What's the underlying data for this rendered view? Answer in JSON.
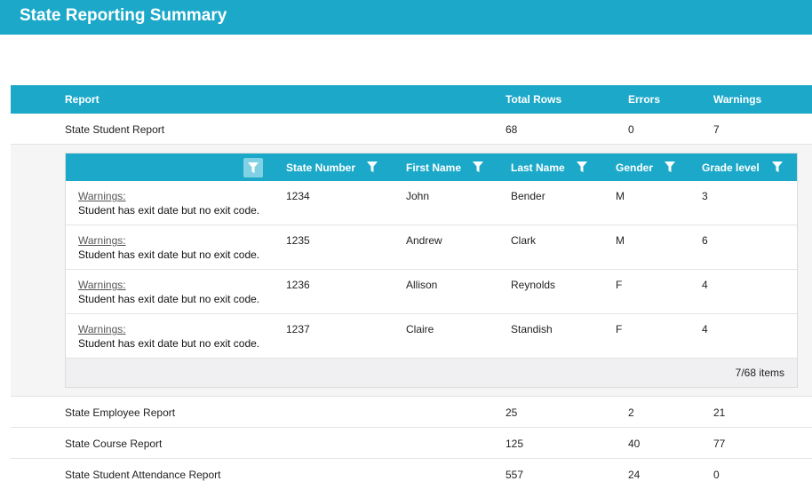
{
  "page": {
    "title": "State Reporting Summary"
  },
  "main_table": {
    "headers": {
      "report": "Report",
      "total_rows": "Total Rows",
      "errors": "Errors",
      "warnings": "Warnings"
    },
    "rows": [
      {
        "report": "State Student Report",
        "total_rows": "68",
        "errors": "0",
        "warnings": "7"
      },
      {
        "report": "State Employee Report",
        "total_rows": "25",
        "errors": "2",
        "warnings": "21"
      },
      {
        "report": "State Course Report",
        "total_rows": "125",
        "errors": "40",
        "warnings": "77"
      },
      {
        "report": "State Student Attendance Report",
        "total_rows": "557",
        "errors": "24",
        "warnings": "0"
      }
    ]
  },
  "detail_table": {
    "headers": {
      "state_number": "State Number",
      "first_name": "First Name",
      "last_name": "Last Name",
      "gender": "Gender",
      "grade_level": "Grade level"
    },
    "icons": {
      "filter": "filter-icon"
    },
    "rows": [
      {
        "warn_label": "Warnings:",
        "warn_msg": "Student has exit date but no exit code.",
        "state_number": "1234",
        "first_name": "John",
        "last_name": "Bender",
        "gender": "M",
        "grade_level": "3"
      },
      {
        "warn_label": "Warnings:",
        "warn_msg": "Student has exit date but no exit code.",
        "state_number": "1235",
        "first_name": "Andrew",
        "last_name": "Clark",
        "gender": "M",
        "grade_level": "6"
      },
      {
        "warn_label": "Warnings:",
        "warn_msg": "Student has exit date but no exit code.",
        "state_number": "1236",
        "first_name": "Allison",
        "last_name": "Reynolds",
        "gender": "F",
        "grade_level": "4"
      },
      {
        "warn_label": "Warnings:",
        "warn_msg": "Student has exit date but no exit code.",
        "state_number": "1237",
        "first_name": "Claire",
        "last_name": "Standish",
        "gender": "F",
        "grade_level": "4"
      }
    ],
    "footer": {
      "items_text": "7/68 items"
    }
  },
  "colors": {
    "accent": "#1ca9c9",
    "accent_light": "#7fd1e3",
    "detail_bg": "#f5f5f6",
    "footer_bg": "#f0f0f2"
  }
}
